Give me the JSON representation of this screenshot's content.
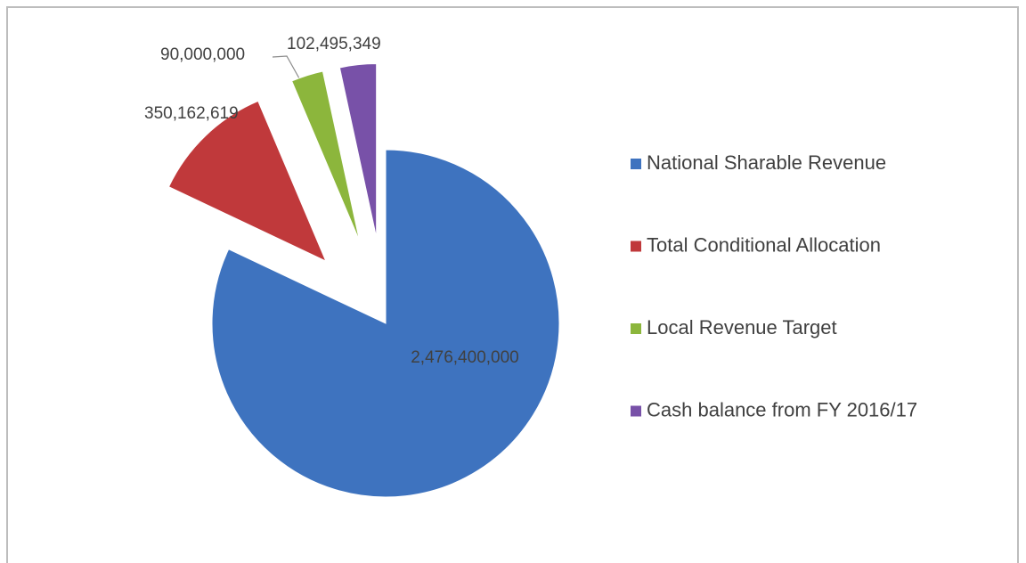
{
  "chart_data": {
    "type": "pie",
    "categories": [
      "National Sharable Revenue",
      "Total Conditional Allocation",
      "Local Revenue Target",
      "Cash balance from FY 2016/17"
    ],
    "values": [
      2476400000,
      350162619,
      90000000,
      102495349
    ],
    "value_labels": [
      "2,476,400,000",
      "350,162,619",
      "90,000,000",
      "102,495,349"
    ],
    "colors": [
      "#3e73bf",
      "#c0393b",
      "#8cb63c",
      "#7851a8"
    ],
    "exploded": [
      false,
      true,
      true,
      true
    ],
    "legend": "right"
  }
}
